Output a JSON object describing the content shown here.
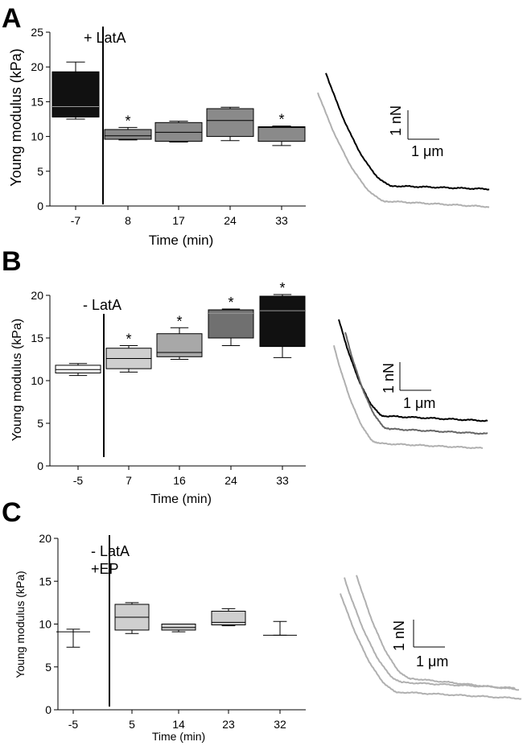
{
  "chart_data": [
    {
      "type": "box",
      "panel": "A",
      "ylabel": "Young modulus (kPa)",
      "xlabel": "Time (min)",
      "ylim": [
        0,
        25
      ],
      "yticks": [
        0,
        5,
        10,
        15,
        20,
        25
      ],
      "treatment_label": "+ LatA",
      "categories": [
        "-7",
        "8",
        "17",
        "24",
        "33"
      ],
      "boxes": [
        {
          "min": 12.5,
          "q1": 12.8,
          "median": 14.3,
          "q3": 19.3,
          "max": 20.7,
          "significant": false,
          "fill": "#111111"
        },
        {
          "min": 9.5,
          "q1": 9.6,
          "median": 10.1,
          "q3": 11.0,
          "max": 11.3,
          "significant": true,
          "fill": "#8a8a8a"
        },
        {
          "min": 9.2,
          "q1": 9.3,
          "median": 10.6,
          "q3": 12.0,
          "max": 12.2,
          "significant": false,
          "fill": "#8a8a8a"
        },
        {
          "min": 9.4,
          "q1": 10.0,
          "median": 12.3,
          "q3": 14.0,
          "max": 14.2,
          "significant": false,
          "fill": "#8a8a8a"
        },
        {
          "min": 8.7,
          "q1": 9.3,
          "median": 11.3,
          "q3": 11.4,
          "max": 11.5,
          "significant": true,
          "fill": "#8a8a8a"
        }
      ],
      "force_scale": "1 nN",
      "distance_scale": "1 μm",
      "curve_colors": [
        "#000000",
        "#b0b0b0"
      ]
    },
    {
      "type": "box",
      "panel": "B",
      "ylabel": "Young modulus (kPa)",
      "xlabel": "Time (min)",
      "ylim": [
        0,
        20
      ],
      "yticks": [
        0,
        5,
        10,
        15,
        20
      ],
      "treatment_label": "- LatA",
      "categories": [
        "-5",
        "7",
        "16",
        "24",
        "33"
      ],
      "boxes": [
        {
          "min": 10.6,
          "q1": 10.9,
          "median": 11.3,
          "q3": 11.8,
          "max": 12.0,
          "significant": false,
          "fill": "#ffffff"
        },
        {
          "min": 11.0,
          "q1": 11.4,
          "median": 12.6,
          "q3": 13.8,
          "max": 14.1,
          "significant": true,
          "fill": "#cfcfcf"
        },
        {
          "min": 12.5,
          "q1": 12.8,
          "median": 13.3,
          "q3": 15.5,
          "max": 16.2,
          "significant": true,
          "fill": "#a8a8a8"
        },
        {
          "min": 14.1,
          "q1": 15.0,
          "median": 17.9,
          "q3": 18.3,
          "max": 18.4,
          "significant": true,
          "fill": "#707070"
        },
        {
          "min": 12.7,
          "q1": 14.0,
          "median": 18.2,
          "q3": 19.9,
          "max": 20.1,
          "significant": true,
          "fill": "#111111"
        }
      ],
      "force_scale": "1 nN",
      "distance_scale": "1 μm",
      "curve_colors": [
        "#000000",
        "#666666",
        "#b0b0b0"
      ]
    },
    {
      "type": "box",
      "panel": "C",
      "ylabel": "Young modulus (kPa)",
      "xlabel": "Time (min)",
      "ylim": [
        0,
        20
      ],
      "yticks": [
        0,
        5,
        10,
        15,
        20
      ],
      "treatment_label": "- LatA",
      "treatment_label2": "+EP",
      "categories": [
        "-5",
        "5",
        "14",
        "23",
        "32"
      ],
      "boxes": [
        {
          "min": 7.3,
          "q1": 9.1,
          "median": 9.1,
          "q3": 9.1,
          "max": 9.4,
          "significant": false,
          "fill": "#ffffff"
        },
        {
          "min": 8.9,
          "q1": 9.3,
          "median": 10.8,
          "q3": 12.3,
          "max": 12.5,
          "significant": false,
          "fill": "#cfcfcf"
        },
        {
          "min": 9.1,
          "q1": 9.3,
          "median": 9.6,
          "q3": 10.0,
          "max": 10.0,
          "significant": false,
          "fill": "#cfcfcf"
        },
        {
          "min": 9.8,
          "q1": 9.9,
          "median": 10.2,
          "q3": 11.5,
          "max": 11.8,
          "significant": false,
          "fill": "#cfcfcf"
        },
        {
          "min": 8.7,
          "q1": 8.7,
          "median": 8.7,
          "q3": 8.7,
          "max": 10.3,
          "significant": false,
          "fill": "#ffffff"
        }
      ],
      "force_scale": "1 nN",
      "distance_scale": "1 μm",
      "curve_colors": [
        "#b0b0b0",
        "#b0b0b0",
        "#b0b0b0"
      ]
    }
  ]
}
